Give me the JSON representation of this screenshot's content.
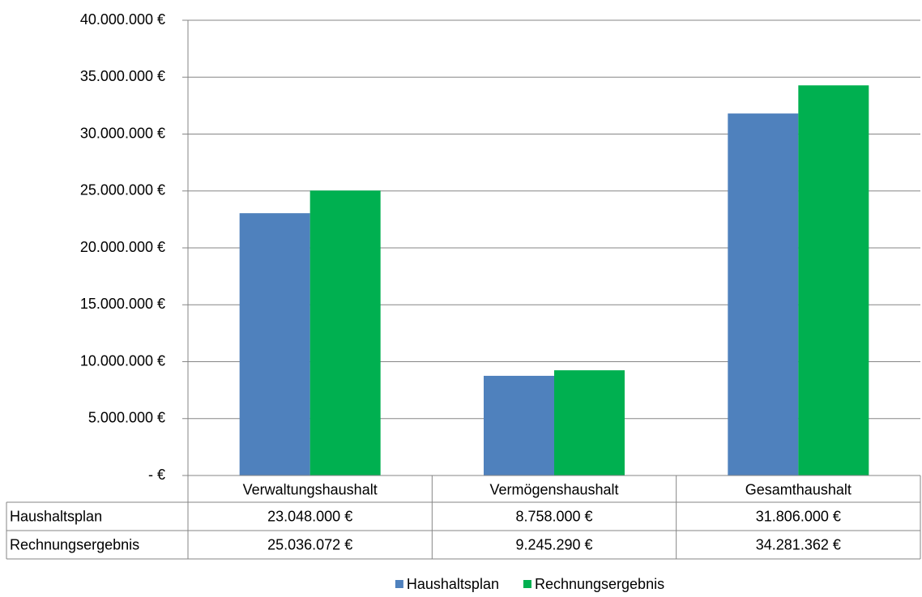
{
  "chart_data": {
    "type": "bar",
    "categories": [
      "Verwaltungshaushalt",
      "Vermögenshaushalt",
      "Gesamthaushalt"
    ],
    "series": [
      {
        "name": "Haushaltsplan",
        "color": "#4f81bd",
        "values": [
          23048000,
          8758000,
          31806000
        ],
        "value_labels": [
          "23.048.000 €",
          "8.758.000 €",
          "31.806.000 €"
        ]
      },
      {
        "name": "Rechnungsergebnis",
        "color": "#00b050",
        "values": [
          25036072,
          9245290,
          34281362
        ],
        "value_labels": [
          "25.036.072 €",
          "9.245.290 €",
          "34.281.362 €"
        ]
      }
    ],
    "ylim": [
      0,
      40000000
    ],
    "yticks": [
      {
        "value": 0,
        "label": "-   €"
      },
      {
        "value": 5000000,
        "label": "5.000.000 €"
      },
      {
        "value": 10000000,
        "label": "10.000.000 €"
      },
      {
        "value": 15000000,
        "label": "15.000.000 €"
      },
      {
        "value": 20000000,
        "label": "20.000.000 €"
      },
      {
        "value": 25000000,
        "label": "25.000.000 €"
      },
      {
        "value": 30000000,
        "label": "30.000.000 €"
      },
      {
        "value": 35000000,
        "label": "35.000.000 €"
      },
      {
        "value": 40000000,
        "label": "40.000.000 €"
      }
    ],
    "grid": true,
    "data_table": true,
    "legend": "bottom"
  }
}
